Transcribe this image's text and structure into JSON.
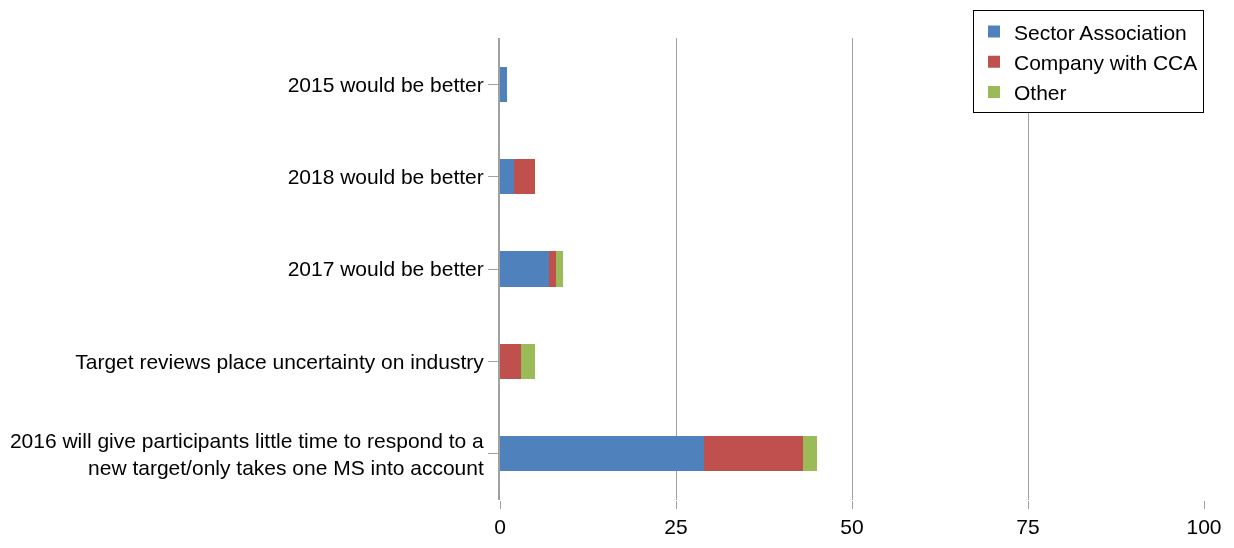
{
  "chart_data": {
    "type": "bar",
    "orientation": "horizontal",
    "stacked": true,
    "categories": [
      "2015 would be better",
      "2018 would be better",
      "2017 would be better",
      "Target reviews place uncertainty on industry",
      "2016 will give participants little time to respond to a\nnew target/only takes one MS into account"
    ],
    "series": [
      {
        "name": "Sector Association",
        "color": "#4f81bd",
        "values": [
          1,
          2,
          7,
          0,
          29
        ]
      },
      {
        "name": "Company with CCA",
        "color": "#c0504d",
        "values": [
          0,
          3,
          1,
          3,
          14
        ]
      },
      {
        "name": "Other",
        "color": "#9bbb59",
        "values": [
          0,
          0,
          1,
          2,
          2
        ]
      }
    ],
    "xlim": [
      0,
      100
    ],
    "xticks": [
      0,
      25,
      50,
      75,
      100
    ],
    "grid": "x",
    "legend": "top right"
  }
}
